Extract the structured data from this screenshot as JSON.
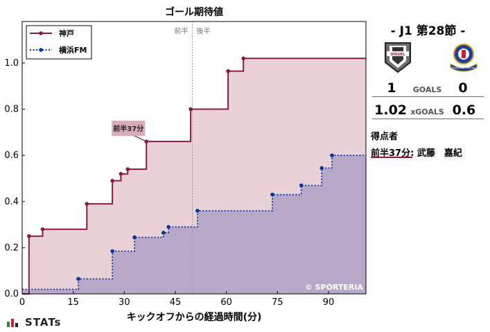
{
  "chart_data": {
    "type": "line",
    "title": "ゴール期待値",
    "xlabel": "キックオフからの経過時間(分)",
    "ylabel": "",
    "xlim": [
      0,
      101
    ],
    "ylim": [
      0,
      1.18
    ],
    "x_ticks": [
      0,
      15,
      30,
      45,
      60,
      75,
      90
    ],
    "y_ticks": [
      0.0,
      0.2,
      0.4,
      0.6,
      0.8,
      1.0
    ],
    "halftime_x": 50,
    "halftime_labels": {
      "first": "前半",
      "second": "後半"
    },
    "legend": "top-left",
    "watermark": "© SPORTERIA",
    "annotation": {
      "text": "前半37分",
      "x": 36.5,
      "y": 0.66
    },
    "series": [
      {
        "name": "神戸",
        "color": "#8b1a3c",
        "fill": "#e7ccd4",
        "style": "solid",
        "points": [
          [
            0,
            0
          ],
          [
            2,
            0.25
          ],
          [
            6,
            0.28
          ],
          [
            19,
            0.39
          ],
          [
            26.5,
            0.49
          ],
          [
            29,
            0.52
          ],
          [
            31,
            0.54
          ],
          [
            36.5,
            0.66
          ],
          [
            49.5,
            0.8
          ],
          [
            60.5,
            0.965
          ],
          [
            65,
            1.02
          ],
          [
            101,
            1.02
          ]
        ]
      },
      {
        "name": "横浜FM",
        "color": "#0a35a0",
        "fill": "#b4a5c6",
        "style": "dotted",
        "points": [
          [
            0,
            0.02
          ],
          [
            16.5,
            0.065
          ],
          [
            26.5,
            0.185
          ],
          [
            33,
            0.245
          ],
          [
            41.5,
            0.265
          ],
          [
            43,
            0.29
          ],
          [
            51.5,
            0.36
          ],
          [
            73.5,
            0.43
          ],
          [
            82,
            0.47
          ],
          [
            88,
            0.545
          ],
          [
            91,
            0.6
          ],
          [
            101,
            0.6
          ]
        ]
      }
    ]
  },
  "match": {
    "title": "-  J1 第28節  -",
    "home_goals": "1",
    "away_goals": "0",
    "goals_label": "GOALS",
    "home_xg": "1.02",
    "away_xg": "0.6",
    "xg_label": "xGOALS",
    "home_logo_text": "VISSEL",
    "away_logo_text": "Yokohama F.Marinos"
  },
  "scorers": {
    "title": "得点者",
    "entries": [
      "前半37分: 武藤　嘉紀"
    ]
  },
  "footer": {
    "brand": "STATs"
  }
}
